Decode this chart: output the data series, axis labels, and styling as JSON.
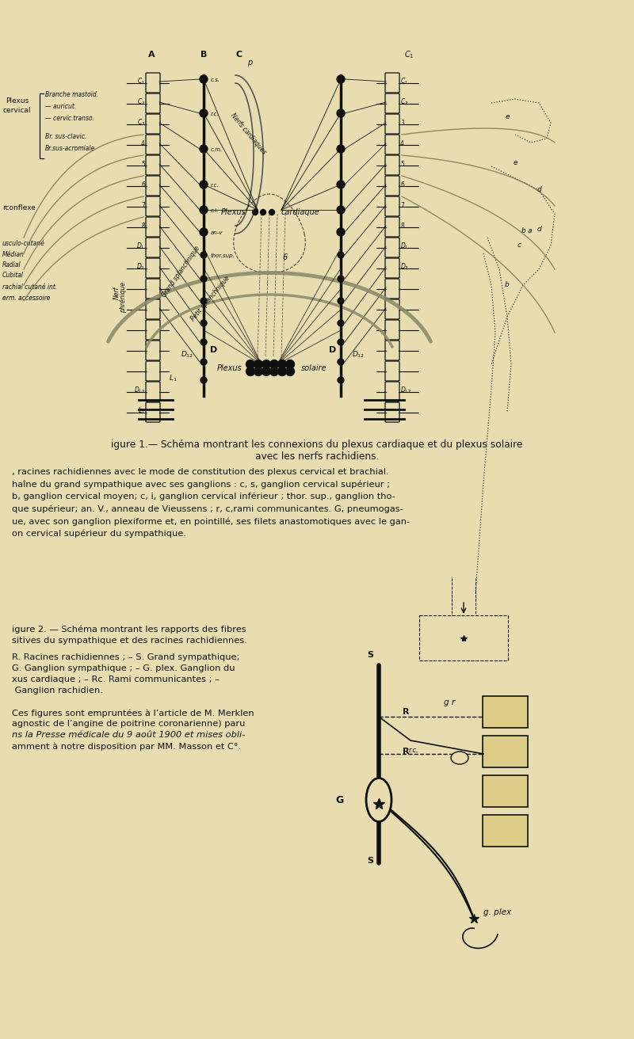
{
  "bg_paper": "#e8ddb0",
  "fig_width": 8.0,
  "fig_height": 13.12,
  "dpi": 100,
  "title1": "igure 1.— Schéma montrant les connexions du plexus cardiaque et du plexus solaire",
  "title2": "avec les nerfs rachidiens.",
  "caption1_lines": [
    ", racines rachidiennes avec le mode de constitution des plexus cervical et brachial.",
    "haîne du grand sympathique avec ses ganglions : c, s, ganglion cervical supérieur ;",
    "b, ganglion cervical moyen; c, i, ganglion cervical inférieur ; thor. sup., ganglion tho-",
    "que supérieur; an. V., anneau de Vieussens ; r, c,rami communicantes. G, pneumogas-",
    "ue, avec son ganglion plexiforme et, en pointillé, ses filets anastomotiques avec le gan-",
    "on cervical supérieur du sympathique."
  ],
  "fig2_title1": "igure 2. — Schéma montrant les rapports des fibres",
  "fig2_title2": "sitives du sympathique et des racines rachidiennes.",
  "fig2_caption_lines": [
    "R. Racines rachidiennes ; – S. Grand sympathique;",
    "G. Ganglion sympathique ; – G. plex. Ganglion du",
    "xus cardiaque ; – Rc. Rami communicantes ; –",
    " Ganglion rachidien."
  ],
  "fig2_footer_lines": [
    "Ces figures sont empruntées à l’article de M. Merklen",
    "agnostic de l’angine de poitrine coronarienne) paru",
    "ns la Presse médicale du 9 août 1900 et mises obli-",
    "amment à notre disposition par MM. Masson et C°."
  ],
  "tc": "#111111",
  "lc": "#111111",
  "caption_fontsize": 8.2,
  "title_fontsize": 8.8
}
